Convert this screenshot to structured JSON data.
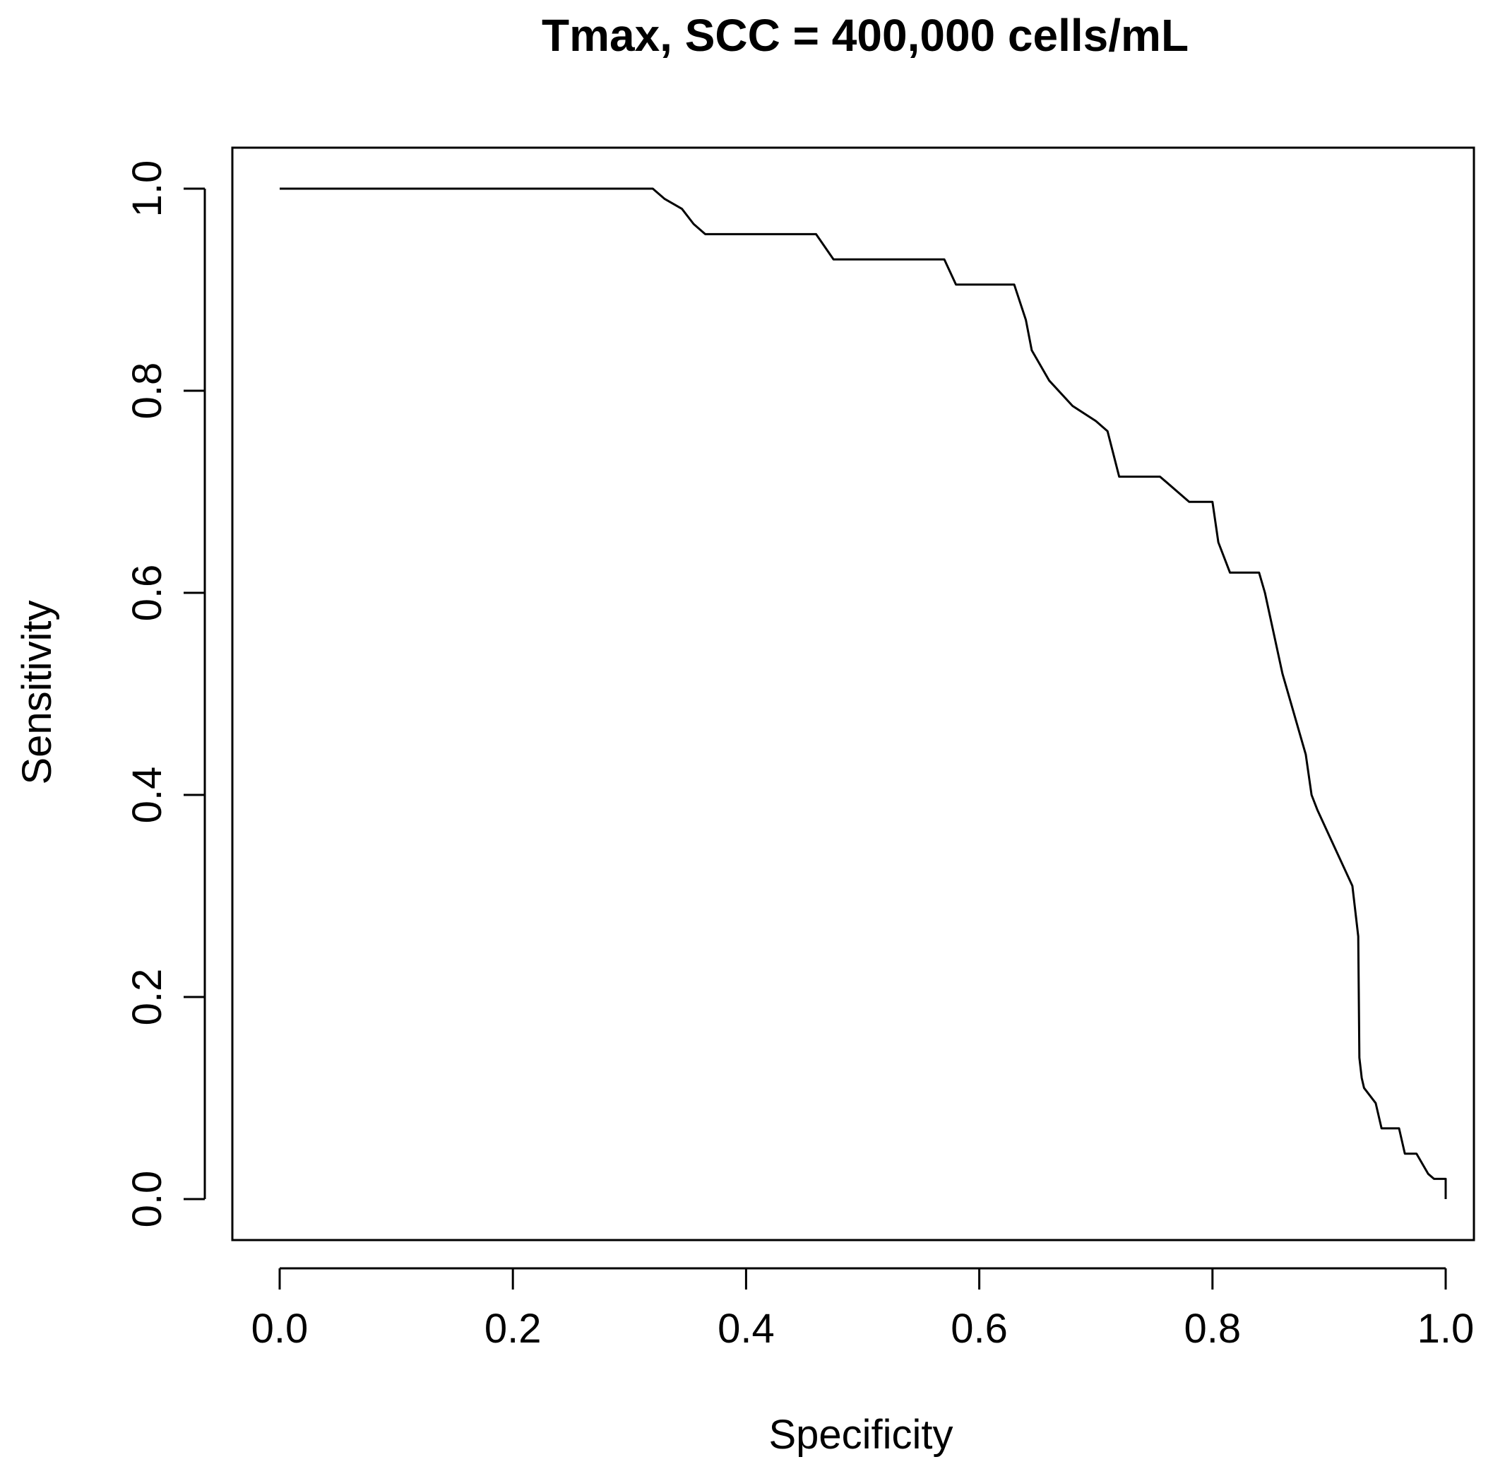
{
  "chart_data": {
    "type": "line",
    "title": "Tmax, SCC = 400,000 cells/mL",
    "xlabel": "Specificity",
    "ylabel": "Sensitivity",
    "xlim": [
      0.0,
      1.0
    ],
    "ylim": [
      0.0,
      1.0
    ],
    "x_ticks": [
      "0.0",
      "0.2",
      "0.4",
      "0.6",
      "0.8",
      "1.0"
    ],
    "y_ticks": [
      "0.0",
      "0.2",
      "0.4",
      "0.6",
      "0.8",
      "1.0"
    ],
    "grid": false,
    "legend": "none",
    "line_color": "#000000",
    "series": [
      {
        "x": [
          0.0,
          0.32,
          0.33,
          0.345,
          0.355,
          0.365,
          0.38,
          0.4,
          0.45,
          0.46,
          0.475,
          0.5,
          0.55,
          0.57,
          0.58,
          0.6,
          0.63,
          0.64,
          0.645,
          0.65,
          0.66,
          0.68,
          0.7,
          0.71,
          0.72,
          0.73,
          0.755,
          0.76,
          0.78,
          0.8,
          0.805,
          0.815,
          0.82,
          0.84,
          0.845,
          0.86,
          0.87,
          0.88,
          0.885,
          0.89,
          0.9,
          0.91,
          0.92,
          0.925,
          0.926,
          0.928,
          0.93,
          0.94,
          0.945,
          0.96,
          0.965,
          0.975,
          0.985,
          0.99,
          1.0,
          1.0
        ],
        "y": [
          1.0,
          1.0,
          0.99,
          0.98,
          0.965,
          0.955,
          0.955,
          0.955,
          0.955,
          0.955,
          0.93,
          0.93,
          0.93,
          0.93,
          0.905,
          0.905,
          0.905,
          0.87,
          0.84,
          0.83,
          0.81,
          0.785,
          0.77,
          0.76,
          0.715,
          0.715,
          0.715,
          0.71,
          0.69,
          0.69,
          0.65,
          0.62,
          0.62,
          0.62,
          0.6,
          0.52,
          0.48,
          0.44,
          0.4,
          0.385,
          0.36,
          0.335,
          0.31,
          0.26,
          0.14,
          0.12,
          0.11,
          0.095,
          0.07,
          0.07,
          0.045,
          0.045,
          0.025,
          0.02,
          0.02,
          0.0
        ]
      }
    ]
  }
}
